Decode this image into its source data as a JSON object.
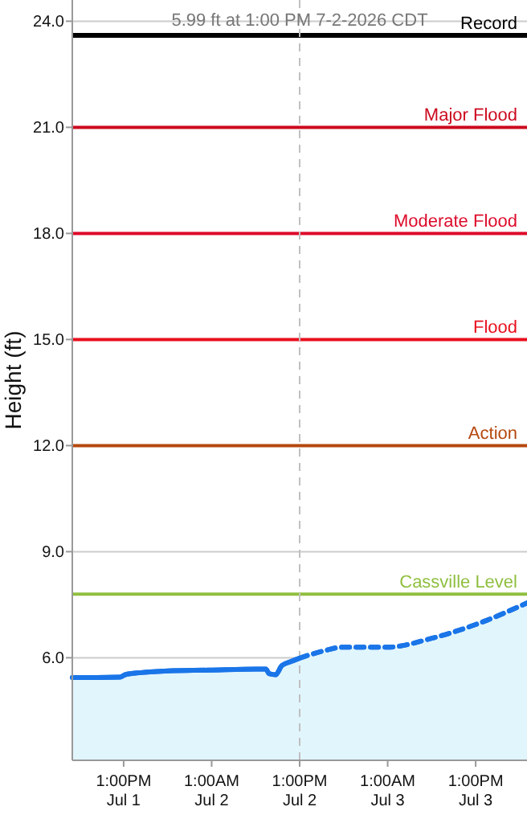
{
  "chart_data": {
    "type": "area",
    "title": "5.99 ft at 1:00 PM 7-2-2026 CDT",
    "ylabel": "Height (ft)",
    "xlim": [
      "2026-07-01T06:00",
      "2026-07-03T20:00"
    ],
    "ylim": [
      3.1,
      24.6
    ],
    "xticks": [
      {
        "value": "2026-07-01T13:00",
        "label": "1:00PM\nJul 1"
      },
      {
        "value": "2026-07-02T01:00",
        "label": "1:00AM\nJul 2"
      },
      {
        "value": "2026-07-02T13:00",
        "label": "1:00PM\nJul 2"
      },
      {
        "value": "2026-07-03T01:00",
        "label": "1:00AM\nJul 3"
      },
      {
        "value": "2026-07-03T13:00",
        "label": "1:00PM\nJul 3"
      }
    ],
    "yticks": [
      {
        "value": 6,
        "label": "6.0"
      },
      {
        "value": 9,
        "label": "9.0"
      },
      {
        "value": 12,
        "label": "12.0"
      },
      {
        "value": 15,
        "label": "15.0"
      },
      {
        "value": 18,
        "label": "18.0"
      },
      {
        "value": 21,
        "label": "21.0"
      },
      {
        "value": 24,
        "label": "24.0"
      }
    ],
    "grid": "y",
    "marker": "none",
    "series": [
      {
        "color": "#1a75e8",
        "line_style": "solid",
        "x": [
          "2026-07-01T06:00",
          "2026-07-01T09:20",
          "2026-07-01T12:30",
          "2026-07-01T13:12",
          "2026-07-01T15:23",
          "2026-07-01T19:05",
          "2026-07-02T00:30",
          "2026-07-02T07:06",
          "2026-07-02T08:24",
          "2026-07-02T08:50",
          "2026-07-02T09:43",
          "2026-07-02T10:35",
          "2026-07-02T11:54",
          "2026-07-02T13:00"
        ],
        "values": [
          5.44,
          5.44,
          5.45,
          5.52,
          5.58,
          5.63,
          5.65,
          5.68,
          5.68,
          5.55,
          5.52,
          5.78,
          5.9,
          5.99
        ]
      },
      {
        "color": "#1a75e8",
        "line_style": "dashed",
        "x": [
          "2026-07-02T13:00",
          "2026-07-02T16:00",
          "2026-07-02T19:00",
          "2026-07-03T01:00",
          "2026-07-03T07:00",
          "2026-07-03T13:00",
          "2026-07-03T20:00"
        ],
        "values": [
          5.99,
          6.18,
          6.3,
          6.3,
          6.55,
          6.94,
          7.55
        ]
      }
    ],
    "ref_lines": [
      {
        "axis": "y",
        "value": 23.6,
        "label": "Record",
        "color": "#000000"
      },
      {
        "axis": "y",
        "value": 21,
        "label": "Major Flood",
        "color": "#cc0a1e"
      },
      {
        "axis": "y",
        "value": 18,
        "label": "Moderate Flood",
        "color": "#dd0a2a"
      },
      {
        "axis": "y",
        "value": 15,
        "label": "Flood",
        "color": "#e8101e"
      },
      {
        "axis": "y",
        "value": 12,
        "label": "Action",
        "color": "#b5480e"
      },
      {
        "axis": "y",
        "value": 7.8,
        "label": "Cassville Level",
        "color": "#8fbf3f"
      },
      {
        "axis": "x",
        "value": "2026-07-02T13:00",
        "color": "#c0c0c0",
        "line_style": "dashed"
      }
    ]
  }
}
